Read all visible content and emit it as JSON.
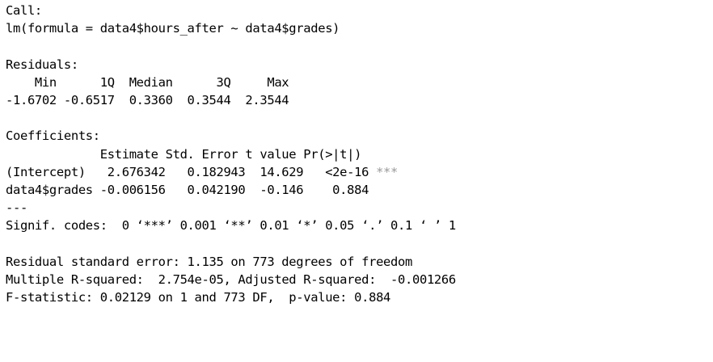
{
  "console": {
    "call_header": "Call:",
    "call_formula": "lm(formula = data4$hours_after ~ data4$grades)",
    "residuals_header": "Residuals:",
    "residuals_labels": "    Min      1Q  Median      3Q     Max ",
    "residuals_values": "-1.6702 -0.6517  0.3360  0.3544  2.3544 ",
    "coefficients_header": "Coefficients:",
    "coef_columns": "             Estimate Std. Error t value Pr(>|t|)    ",
    "coef_row_intercept": "(Intercept)   2.676342   0.182943  14.629   <2e-16 ",
    "coef_row_intercept_stars": "***",
    "coef_row_grades": "data4$grades -0.006156   0.042190  -0.146    0.884    ",
    "separator": "---",
    "signif_codes": "Signif. codes:  0 ‘***’ 0.001 ‘**’ 0.01 ‘*’ 0.05 ‘.’ 0.1 ‘ ’ 1",
    "residual_se": "Residual standard error: 1.135 on 773 degrees of freedom",
    "r_squared": "Multiple R-squared:  2.754e-05,\tAdjusted R-squared:  -0.001266 ",
    "f_statistic": "F-statistic: 0.02129 on 1 and 773 DF,  p-value: 0.884"
  }
}
